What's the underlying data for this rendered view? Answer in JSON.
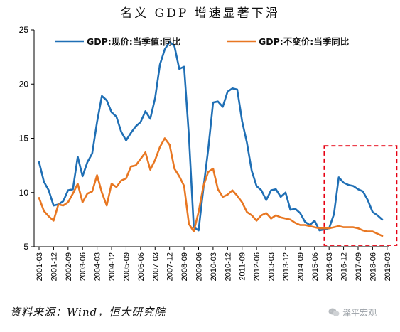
{
  "chart_data": {
    "type": "line",
    "title": "名义 GDP 增速显著下滑",
    "ylim": [
      5,
      25
    ],
    "yticks": [
      5,
      10,
      15,
      20,
      25
    ],
    "x_start": "2001-03",
    "x_step_months": 3,
    "xtick_labels": [
      "2001-03",
      "2001-12",
      "2002-09",
      "2003-06",
      "2004-03",
      "2004-12",
      "2005-09",
      "2006-06",
      "2007-03",
      "2007-12",
      "2008-09",
      "2009-06",
      "2010-03",
      "2010-12",
      "2011-09",
      "2012-06",
      "2013-03",
      "2013-12",
      "2014-09",
      "2015-06",
      "2016-03",
      "2016-12",
      "2017-09",
      "2018-06",
      "2019-03"
    ],
    "legend_position": "top",
    "highlight_box": {
      "x_from": "2015-12",
      "x_to": "2019-09",
      "y_from": 5,
      "y_to": 14.3,
      "color": "#e60012"
    },
    "series": [
      {
        "name": "GDP:现价:当季值:同比",
        "color": "#1f6fb5",
        "values": [
          12.8,
          11.0,
          10.2,
          8.8,
          8.9,
          9.2,
          10.2,
          10.3,
          13.3,
          11.5,
          12.8,
          13.6,
          16.5,
          18.9,
          18.5,
          17.4,
          17.0,
          15.6,
          14.8,
          15.5,
          16.1,
          16.5,
          17.5,
          16.8,
          18.7,
          21.8,
          23.2,
          23.9,
          23.5,
          21.4,
          21.6,
          15.2,
          6.8,
          6.5,
          10.4,
          14.0,
          18.3,
          18.4,
          17.9,
          19.3,
          19.6,
          19.5,
          16.6,
          14.6,
          12.0,
          10.6,
          10.2,
          9.3,
          10.2,
          10.3,
          9.6,
          10.0,
          8.4,
          8.5,
          8.1,
          7.3,
          7.0,
          7.4,
          6.5,
          6.6,
          6.7,
          8.0,
          11.4,
          10.9,
          10.7,
          10.6,
          10.3,
          10.1,
          9.3,
          8.2,
          7.9,
          7.5
        ]
      },
      {
        "name": "GDP:不变价:当季同比",
        "color": "#e87722",
        "values": [
          9.5,
          8.3,
          7.8,
          7.4,
          8.9,
          8.8,
          9.1,
          9.9,
          10.8,
          9.1,
          9.9,
          10.1,
          11.6,
          10.0,
          8.8,
          10.8,
          10.5,
          11.1,
          11.3,
          12.4,
          12.5,
          13.1,
          13.7,
          12.1,
          13.0,
          14.2,
          15.0,
          14.4,
          12.2,
          11.5,
          10.6,
          7.1,
          6.4,
          8.2,
          10.6,
          11.9,
          12.2,
          10.3,
          9.6,
          9.8,
          10.2,
          9.7,
          9.1,
          8.2,
          7.9,
          7.4,
          7.9,
          8.1,
          7.6,
          7.9,
          7.7,
          7.6,
          7.5,
          7.2,
          7.0,
          7.0,
          6.9,
          6.8,
          6.7,
          6.7,
          6.7,
          6.8,
          6.9,
          6.8,
          6.8,
          6.8,
          6.7,
          6.5,
          6.4,
          6.4,
          6.2,
          6.0
        ]
      }
    ]
  },
  "footer": {
    "source": "资料来源：Wind，恒大研究院",
    "watermark": "泽平宏观"
  }
}
